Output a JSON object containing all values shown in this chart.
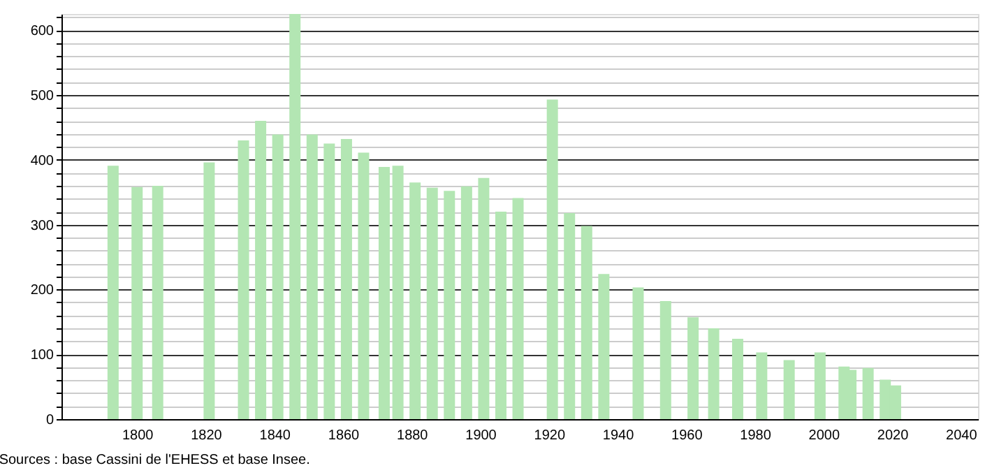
{
  "chart_data": {
    "type": "bar",
    "x": [
      1793,
      1800,
      1806,
      1821,
      1831,
      1836,
      1841,
      1846,
      1851,
      1856,
      1861,
      1866,
      1872,
      1876,
      1881,
      1886,
      1891,
      1896,
      1901,
      1906,
      1911,
      1921,
      1926,
      1931,
      1936,
      1946,
      1954,
      1962,
      1968,
      1975,
      1982,
      1990,
      1999,
      2006,
      2008,
      2013,
      2018,
      2021
    ],
    "values": [
      391,
      358,
      360,
      396,
      430,
      460,
      439,
      625,
      439,
      425,
      432,
      411,
      389,
      391,
      365,
      357,
      352,
      359,
      372,
      320,
      341,
      493,
      318,
      298,
      224,
      203,
      182,
      157,
      140,
      124,
      103,
      91,
      103,
      81,
      76,
      79,
      61,
      52
    ],
    "color": "#b3e6b3",
    "xlim": [
      1780,
      2043
    ],
    "xticks": [
      1800,
      1820,
      1840,
      1860,
      1880,
      1900,
      1920,
      1940,
      1960,
      1980,
      2000,
      2020,
      2040
    ],
    "ylim": [
      0,
      625
    ],
    "yticks": [
      0,
      {
        "value": 20,
        "label": null
      },
      {
        "value": 40,
        "label": null
      },
      {
        "value": 60,
        "label": null
      },
      {
        "value": 80,
        "label": null
      },
      100,
      {
        "value": 120,
        "label": null
      },
      {
        "value": 140,
        "label": null
      },
      {
        "value": 160,
        "label": null
      },
      {
        "value": 180,
        "label": null
      },
      200,
      {
        "value": 220,
        "label": null
      },
      {
        "value": 240,
        "label": null
      },
      {
        "value": 260,
        "label": null
      },
      {
        "value": 280,
        "label": null
      },
      300,
      {
        "value": 320,
        "label": null
      },
      {
        "value": 340,
        "label": null
      },
      {
        "value": 360,
        "label": null
      },
      {
        "value": 380,
        "label": null
      },
      400,
      {
        "value": 420,
        "label": null
      },
      {
        "value": 440,
        "label": null
      },
      {
        "value": 460,
        "label": null
      },
      {
        "value": 480,
        "label": null
      },
      500,
      {
        "value": 520,
        "label": null
      },
      {
        "value": 540,
        "label": null
      },
      {
        "value": 560,
        "label": null
      },
      {
        "value": 580,
        "label": null
      },
      600,
      {
        "value": 620,
        "label": null
      }
    ],
    "grid": "y",
    "annotations": [
      "Sources : base Cassini de l'EHESS et base Insee."
    ]
  }
}
